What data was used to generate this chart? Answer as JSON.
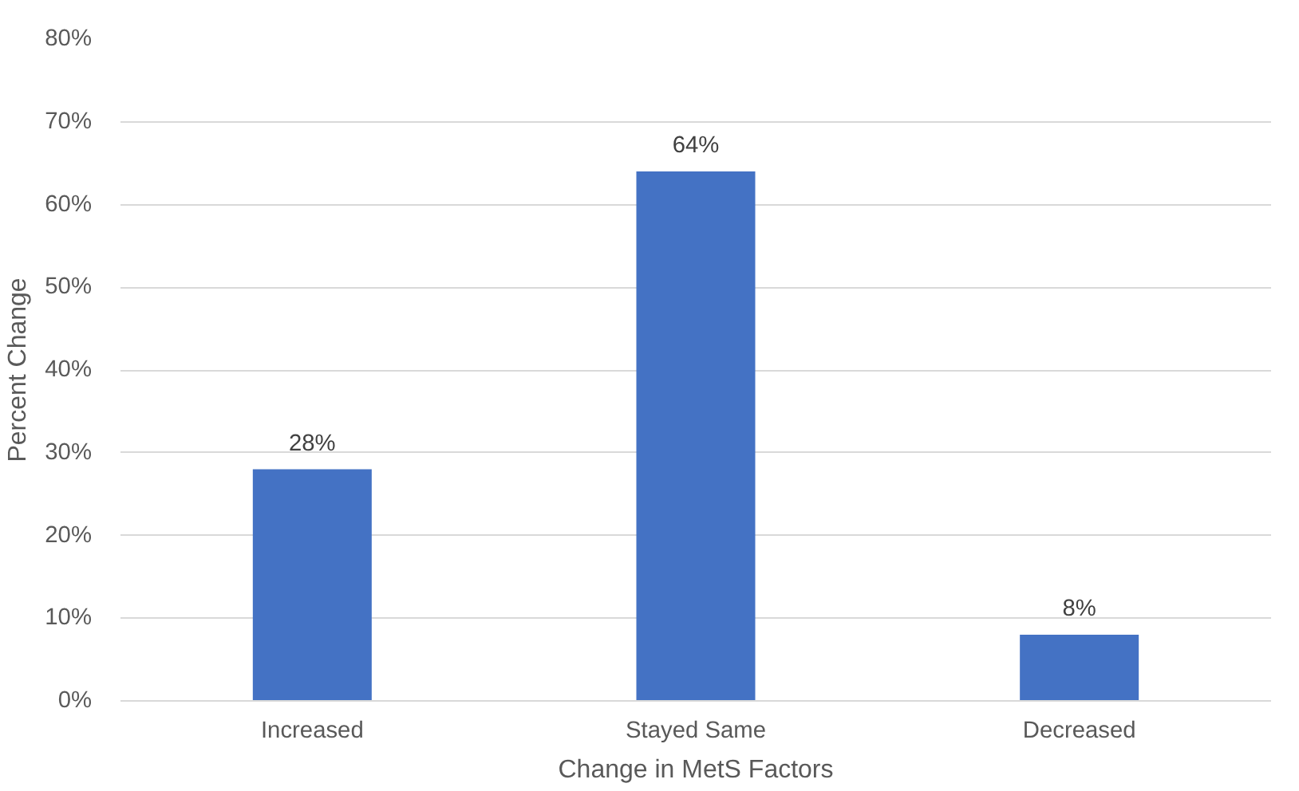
{
  "chart_data": {
    "type": "bar",
    "xlabel": "Change in MetS Factors",
    "ylabel": "Percent Change",
    "categories": [
      "Increased",
      "Stayed Same",
      "Decreased"
    ],
    "values": [
      28,
      64,
      8
    ],
    "value_labels": [
      "28%",
      "64%",
      "8%"
    ],
    "color": "#4472c4",
    "ylim": [
      0,
      80
    ],
    "yticks": [
      {
        "value": 0,
        "label": "0%"
      },
      {
        "value": 10,
        "label": "10%"
      },
      {
        "value": 20,
        "label": "20%"
      },
      {
        "value": 30,
        "label": "30%"
      },
      {
        "value": 40,
        "label": "40%"
      },
      {
        "value": 50,
        "label": "50%"
      },
      {
        "value": 60,
        "label": "60%"
      },
      {
        "value": 70,
        "label": "70%"
      },
      {
        "value": 80,
        "label": "80%"
      }
    ],
    "grid": "y"
  }
}
